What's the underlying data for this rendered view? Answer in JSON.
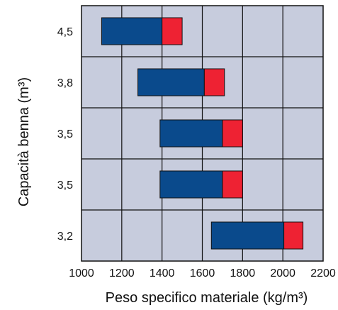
{
  "chart_data": {
    "type": "bar",
    "orientation": "horizontal-range-stacked",
    "xlabel": "Peso specifico materiale (kg/m³)",
    "ylabel": "Capacità benna (m³)",
    "xlim": [
      1000,
      2200
    ],
    "xticks": [
      "1000",
      "1200",
      "1400",
      "1600",
      "1800",
      "2000",
      "2200"
    ],
    "grid": true,
    "categories": [
      "4,5",
      "3,8",
      "3,5",
      "3,5",
      "3,2"
    ],
    "ranges": [
      {
        "start": 1100,
        "split": 1400,
        "end": 1500
      },
      {
        "start": 1280,
        "split": 1610,
        "end": 1710
      },
      {
        "start": 1390,
        "split": 1700,
        "end": 1800
      },
      {
        "start": 1390,
        "split": 1700,
        "end": 1800
      },
      {
        "start": 1645,
        "split": 2005,
        "end": 2100
      }
    ],
    "colors": {
      "background": "#c7ccdd",
      "grid": "#111111",
      "primary": "#0a4a8c",
      "secondary": "#ee2233"
    }
  }
}
